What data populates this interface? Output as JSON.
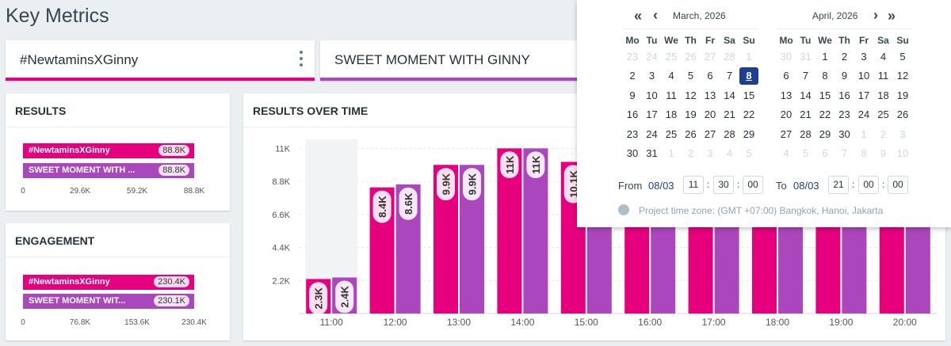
{
  "page": {
    "title": "Key Metrics"
  },
  "tags": [
    {
      "label": "#NewtaminsXGinny",
      "color": "#e6007e"
    },
    {
      "label": "SWEET MOMENT WITH GINNY",
      "color": "#ab47bc"
    }
  ],
  "results": {
    "title": "RESULTS",
    "bars": [
      {
        "label": "#NewtaminsXGinny",
        "value": "88.8K",
        "fraction": 1.0
      },
      {
        "label": "SWEET MOMENT WITH ...",
        "value": "88.8K",
        "fraction": 1.0
      }
    ],
    "ticks": [
      "0",
      "29.6K",
      "59.2K",
      "88.8K"
    ]
  },
  "engagement": {
    "title": "ENGAGEMENT",
    "bars": [
      {
        "label": "#NewtaminsXGinny",
        "value": "230.4K",
        "fraction": 1.0
      },
      {
        "label": "SWEET MOMENT WIT...",
        "value": "230.1K",
        "fraction": 0.999
      }
    ],
    "ticks": [
      "0",
      "76.8K",
      "153.6K",
      "230.4K"
    ]
  },
  "over_time": {
    "title": "RESULTS OVER TIME"
  },
  "chart_data": {
    "type": "bar",
    "title": "RESULTS OVER TIME",
    "categories": [
      "11:00",
      "12:00",
      "13:00",
      "14:00",
      "15:00",
      "16:00",
      "17:00",
      "18:00",
      "19:00",
      "20:00"
    ],
    "series": [
      {
        "name": "#NewtaminsXGinny",
        "values": [
          2300,
          8400,
          9900,
          11000,
          10100,
          11000,
          11000,
          11000,
          11000,
          11000
        ],
        "labels": [
          "2.3K",
          "8.4K",
          "9.9K",
          "11K",
          "10.1K",
          "",
          "",
          "",
          "",
          ""
        ]
      },
      {
        "name": "SWEET MOMENT WITH GINNY",
        "values": [
          2400,
          8600,
          9900,
          11000,
          10100,
          11000,
          11000,
          11000,
          11000,
          11000
        ],
        "labels": [
          "2.4K",
          "8.6K",
          "9.9K",
          "11K",
          "",
          "",
          "",
          "",
          "",
          ""
        ]
      }
    ],
    "yticks": [
      "2.2K",
      "4.4K",
      "6.6K",
      "8.8K",
      "11K"
    ],
    "ytick_values": [
      2200,
      4400,
      6600,
      8800,
      11000
    ],
    "ylim": [
      0,
      11600
    ],
    "colors": [
      "#e6007e",
      "#ab47bc"
    ],
    "highlight_first_bucket": true
  },
  "datepicker": {
    "left_month": "March, 2026",
    "right_month": "April, 2026",
    "weekdays": [
      "Mo",
      "Tu",
      "We",
      "Th",
      "Fr",
      "Sa",
      "Su"
    ],
    "march_days": [
      [
        "23",
        "24",
        "25",
        "26",
        "27",
        "28",
        "1"
      ],
      [
        "2",
        "3",
        "4",
        "5",
        "6",
        "7",
        "8"
      ],
      [
        "9",
        "10",
        "11",
        "12",
        "13",
        "14",
        "15"
      ],
      [
        "16",
        "17",
        "18",
        "19",
        "20",
        "21",
        "22"
      ],
      [
        "23",
        "24",
        "25",
        "26",
        "27",
        "28",
        "29"
      ],
      [
        "30",
        "31",
        "1",
        "2",
        "3",
        "4",
        "5"
      ]
    ],
    "march_out": [
      [
        1,
        1,
        1,
        1,
        1,
        1,
        1
      ],
      [
        0,
        0,
        0,
        0,
        0,
        0,
        0
      ],
      [
        0,
        0,
        0,
        0,
        0,
        0,
        0
      ],
      [
        0,
        0,
        0,
        0,
        0,
        0,
        0
      ],
      [
        0,
        0,
        0,
        0,
        0,
        0,
        0
      ],
      [
        0,
        0,
        1,
        1,
        1,
        1,
        1
      ]
    ],
    "april_days": [
      [
        "30",
        "31",
        "1",
        "2",
        "3",
        "4",
        "5"
      ],
      [
        "6",
        "7",
        "8",
        "9",
        "10",
        "11",
        "12"
      ],
      [
        "13",
        "14",
        "15",
        "16",
        "17",
        "18",
        "19"
      ],
      [
        "20",
        "21",
        "22",
        "23",
        "24",
        "25",
        "26"
      ],
      [
        "27",
        "28",
        "29",
        "30",
        "1",
        "2",
        "3"
      ],
      [
        "4",
        "5",
        "6",
        "7",
        "8",
        "9",
        "10"
      ]
    ],
    "april_out": [
      [
        1,
        1,
        0,
        0,
        0,
        0,
        0
      ],
      [
        0,
        0,
        0,
        0,
        0,
        0,
        0
      ],
      [
        0,
        0,
        0,
        0,
        0,
        0,
        0
      ],
      [
        0,
        0,
        0,
        0,
        0,
        0,
        0
      ],
      [
        0,
        0,
        0,
        0,
        1,
        1,
        1
      ],
      [
        1,
        1,
        1,
        1,
        1,
        1,
        1
      ]
    ],
    "selected_day": "8",
    "from_label": "From",
    "from_date": "08/03",
    "from_h": "11",
    "from_m": "30",
    "from_s": "00",
    "to_label": "To",
    "to_date": "08/03",
    "to_h": "21",
    "to_m": "00",
    "to_s": "00",
    "colon": ":",
    "timezone": "Project time zone: (GMT +07:00) Bangkok, Hanoi, Jakarta",
    "nav_prev_year": "«",
    "nav_prev": "‹",
    "nav_next": "›",
    "nav_next_year": "»"
  }
}
